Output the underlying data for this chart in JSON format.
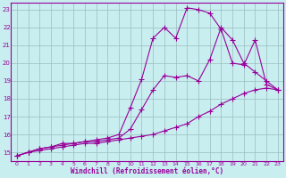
{
  "xlabel": "Windchill (Refroidissement éolien,°C)",
  "bg_color": "#c8eef0",
  "grid_color": "#9bbcbe",
  "line_color": "#990099",
  "xlim": [
    -0.5,
    23.5
  ],
  "ylim": [
    14.5,
    23.4
  ],
  "xticks": [
    0,
    1,
    2,
    3,
    4,
    5,
    6,
    7,
    8,
    9,
    10,
    11,
    12,
    13,
    14,
    15,
    16,
    17,
    18,
    19,
    20,
    21,
    22,
    23
  ],
  "yticks": [
    15,
    16,
    17,
    18,
    19,
    20,
    21,
    22,
    23
  ],
  "line1_x": [
    0,
    1,
    2,
    3,
    4,
    5,
    6,
    7,
    8,
    9,
    10,
    11,
    12,
    13,
    14,
    15,
    16,
    17,
    18,
    19,
    20,
    21,
    22,
    23
  ],
  "line1_y": [
    14.8,
    15.0,
    15.1,
    15.2,
    15.3,
    15.4,
    15.5,
    15.5,
    15.6,
    15.7,
    15.8,
    15.9,
    16.0,
    16.2,
    16.4,
    16.6,
    17.0,
    17.3,
    17.7,
    18.0,
    18.3,
    18.5,
    18.6,
    18.5
  ],
  "line2_x": [
    0,
    1,
    2,
    3,
    4,
    5,
    6,
    7,
    8,
    9,
    10,
    11,
    12,
    13,
    14,
    15,
    16,
    17,
    18,
    19,
    20,
    21,
    22,
    23
  ],
  "line2_y": [
    14.8,
    15.0,
    15.2,
    15.3,
    15.4,
    15.5,
    15.6,
    15.6,
    15.7,
    15.8,
    16.3,
    17.4,
    18.5,
    19.3,
    19.2,
    19.3,
    19.0,
    20.2,
    22.0,
    21.3,
    20.0,
    19.5,
    19.0,
    18.5
  ],
  "line3_x": [
    0,
    1,
    2,
    3,
    4,
    5,
    6,
    7,
    8,
    9,
    10,
    11,
    12,
    13,
    14,
    15,
    16,
    17,
    18,
    19,
    20,
    21,
    22,
    23
  ],
  "line3_y": [
    14.8,
    15.0,
    15.2,
    15.3,
    15.5,
    15.5,
    15.6,
    15.7,
    15.8,
    16.0,
    17.5,
    19.1,
    21.4,
    22.0,
    21.4,
    23.1,
    23.0,
    22.8,
    21.9,
    20.0,
    19.9,
    21.3,
    18.8,
    18.5
  ],
  "markersize": 2.0,
  "linewidth": 0.8
}
